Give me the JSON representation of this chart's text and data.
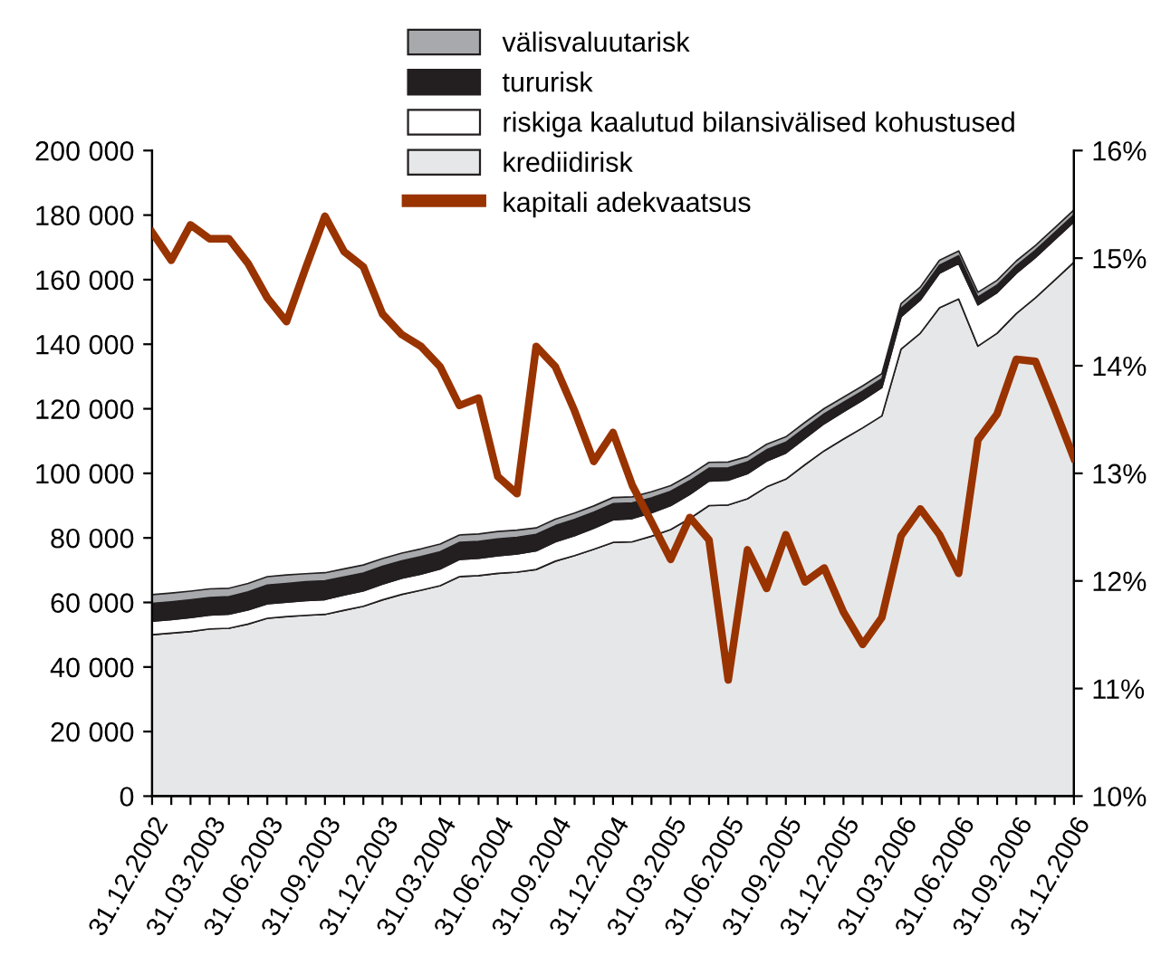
{
  "chart_data": {
    "type": "area",
    "stacked": true,
    "categories": [
      "31.12.2002",
      null,
      null,
      "31.03.2003",
      null,
      null,
      "31.06.2003",
      null,
      null,
      "31.09.2003",
      null,
      null,
      "31.12.2003",
      null,
      null,
      "31.03.2004",
      null,
      null,
      "31.06.2004",
      null,
      null,
      "31.09.2004",
      null,
      null,
      "31.12.2004",
      null,
      null,
      "31.03.2005",
      null,
      null,
      "31.06.2005",
      null,
      null,
      "31.09.2005",
      null,
      null,
      "31.12.2005",
      null,
      null,
      "31.03.2006",
      null,
      null,
      "31.06.2006",
      null,
      null,
      "31.09.2006",
      null,
      null,
      "31.12.2006"
    ],
    "series": [
      {
        "name": "krediidirisk",
        "color": "#e6e7e8",
        "values": [
          50000,
          50500,
          51000,
          51800,
          52000,
          53300,
          55100,
          55600,
          56000,
          56300,
          57600,
          58800,
          60800,
          62500,
          63800,
          65200,
          68000,
          68300,
          69000,
          69400,
          70200,
          72800,
          74500,
          76500,
          78600,
          78800,
          80500,
          82600,
          86000,
          90000,
          90200,
          92100,
          95800,
          98200,
          102700,
          107000,
          110600,
          114100,
          117800,
          138500,
          143400,
          151300,
          154000,
          139400,
          143400,
          149500,
          154400,
          159900,
          165400
        ]
      },
      {
        "name": "riskiga kaalutud bilansivälised kohustused",
        "color": "#ffffff",
        "values": [
          4200,
          4200,
          4300,
          4300,
          4400,
          4400,
          4500,
          4500,
          4600,
          4600,
          4700,
          4800,
          4900,
          5000,
          5000,
          5200,
          5300,
          5400,
          5500,
          5600,
          5800,
          6000,
          6200,
          6500,
          7000,
          7200,
          7300,
          7400,
          7500,
          7600,
          7700,
          7800,
          8000,
          8100,
          8200,
          8400,
          8500,
          8600,
          8800,
          10000,
          10300,
          10700,
          11000,
          12800,
          12600,
          12500,
          12500,
          12500,
          12500
        ]
      },
      {
        "name": "tururisk",
        "color": "#231f20",
        "values": [
          5500,
          5500,
          5500,
          5400,
          5400,
          5600,
          5800,
          5800,
          5800,
          5800,
          5600,
          5500,
          5500,
          5400,
          5400,
          5300,
          5300,
          5200,
          5200,
          5200,
          5100,
          5000,
          5000,
          5000,
          5000,
          4800,
          4600,
          4400,
          4200,
          4000,
          3800,
          3600,
          3500,
          3300,
          3200,
          3000,
          2900,
          2800,
          2700,
          2600,
          2500,
          2500,
          2400,
          2400,
          2300,
          2300,
          2200,
          2200,
          2200
        ]
      },
      {
        "name": "välisvaluutarisk",
        "color": "#a7a9ac",
        "values": [
          2700,
          2700,
          2700,
          2700,
          2600,
          2600,
          2600,
          2600,
          2500,
          2500,
          2500,
          2500,
          2400,
          2400,
          2400,
          2400,
          2300,
          2300,
          2300,
          2200,
          2000,
          2000,
          2000,
          1900,
          1900,
          1900,
          1900,
          1800,
          1800,
          1800,
          1800,
          1700,
          1700,
          1700,
          1700,
          1700,
          1600,
          1600,
          1600,
          1500,
          1500,
          1500,
          1500,
          1500,
          1500,
          1500,
          1500,
          1500,
          1500
        ]
      },
      {
        "name": "kapitali adekvaatsus",
        "type": "line",
        "axis": "y2",
        "color": "#993300",
        "values": [
          15.24,
          14.98,
          15.31,
          15.18,
          15.18,
          14.95,
          14.63,
          14.41,
          14.91,
          15.39,
          15.06,
          14.92,
          14.48,
          14.29,
          14.18,
          13.99,
          13.63,
          13.7,
          12.97,
          12.81,
          14.18,
          13.99,
          13.58,
          13.11,
          13.38,
          12.89,
          12.55,
          12.2,
          12.59,
          12.38,
          11.08,
          12.29,
          11.93,
          12.43,
          11.99,
          12.12,
          11.71,
          11.41,
          11.66,
          12.42,
          12.67,
          12.43,
          12.07,
          13.31,
          13.55,
          14.06,
          14.04,
          13.6,
          13.14
        ]
      }
    ],
    "ylim": [
      0,
      200000
    ],
    "yticks": [
      {
        "value": 0,
        "label": "0"
      },
      {
        "value": 20000,
        "label": "20 000"
      },
      {
        "value": 40000,
        "label": "40 000"
      },
      {
        "value": 60000,
        "label": "60 000"
      },
      {
        "value": 80000,
        "label": "80 000"
      },
      {
        "value": 100000,
        "label": "100 000"
      },
      {
        "value": 120000,
        "label": "120 000"
      },
      {
        "value": 140000,
        "label": "140 000"
      },
      {
        "value": 160000,
        "label": "160 000"
      },
      {
        "value": 180000,
        "label": "180 000"
      },
      {
        "value": 200000,
        "label": "200 000"
      }
    ],
    "y2lim": [
      10,
      16
    ],
    "y2ticks": [
      {
        "value": 10,
        "label": "10%"
      },
      {
        "value": 11,
        "label": "11%"
      },
      {
        "value": 12,
        "label": "12%"
      },
      {
        "value": 13,
        "label": "13%"
      },
      {
        "value": 14,
        "label": "14%"
      },
      {
        "value": 15,
        "label": "15%"
      },
      {
        "value": 16,
        "label": "16%"
      }
    ],
    "grid": false,
    "legend": "top",
    "marker": "none",
    "line_style": "solid"
  }
}
